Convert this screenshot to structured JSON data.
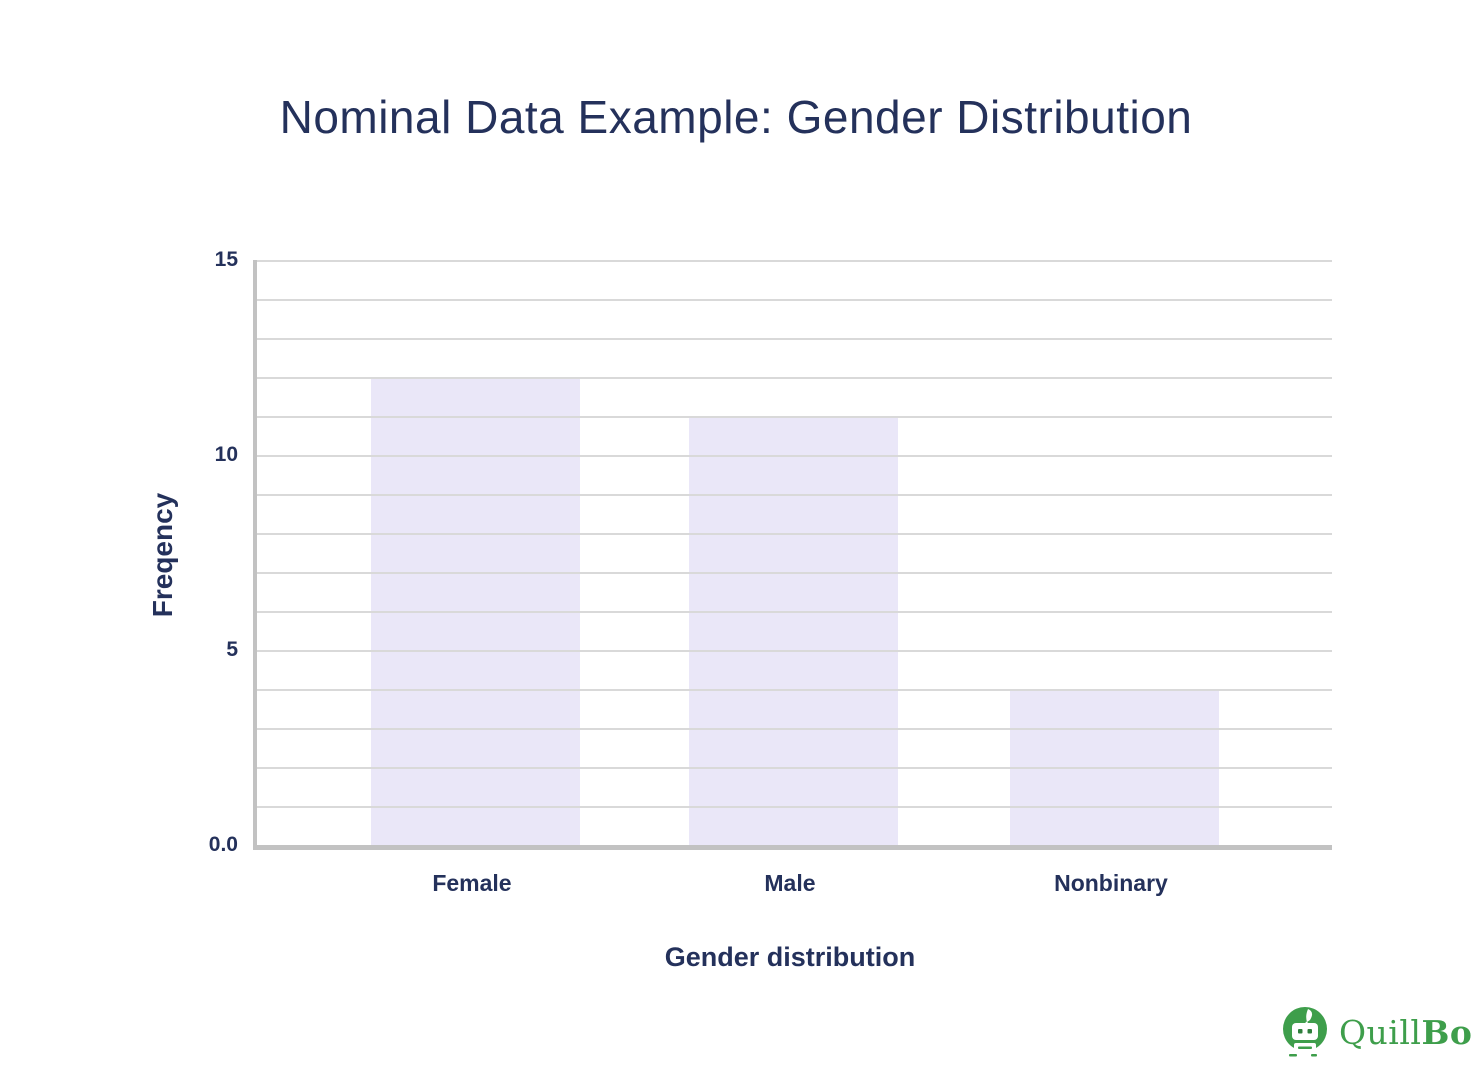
{
  "chart_data": {
    "type": "bar",
    "title": "Nominal Data Example: Gender Distribution",
    "categories": [
      "Female",
      "Male",
      "Nonbinary"
    ],
    "values": [
      12,
      11,
      4
    ],
    "xlabel": "Gender distribution",
    "ylabel": "Freqency",
    "ylim": [
      0,
      15
    ],
    "yticks": [
      {
        "label": "15",
        "value": 15
      },
      {
        "label": "10",
        "value": 10
      },
      {
        "label": "5",
        "value": 5
      },
      {
        "label": "0.0",
        "value": 0
      }
    ],
    "grid": true,
    "gridline_step": 1,
    "legend": "none",
    "bar_color": "#EAE7F8",
    "gridline_color": "#d9d9d9",
    "axis_color": "#c2c2c2",
    "text_color": "#24315B"
  },
  "branding": {
    "wordmark_quill": "Quill",
    "wordmark_bot": "Bot",
    "logo_color": "#3E9E4B",
    "icon": "quillbot-robot-icon"
  }
}
